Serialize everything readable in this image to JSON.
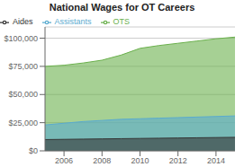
{
  "chart_data": {
    "type": "area",
    "title": "National Wages for OT Careers",
    "x": [
      2005,
      2006,
      2007,
      2008,
      2009,
      2010,
      2011,
      2012,
      2013,
      2014,
      2015
    ],
    "series": [
      {
        "name": "OTS",
        "color": "#6ab04c",
        "values": [
          75000,
          76000,
          78000,
          80500,
          85000,
          91000,
          93500,
          95500,
          97500,
          99500,
          101000
        ]
      },
      {
        "name": "Assistants",
        "color": "#5aabcf",
        "values": [
          23000,
          24500,
          26000,
          27000,
          28000,
          28500,
          29000,
          29500,
          30000,
          30500,
          31000
        ]
      },
      {
        "name": "Aides",
        "color": "#333333",
        "values": [
          10000,
          10200,
          10400,
          10600,
          10800,
          11000,
          11200,
          11400,
          11600,
          11800,
          12000
        ]
      }
    ],
    "xlim": [
      2005,
      2015
    ],
    "xticks": [
      2006,
      2008,
      2010,
      2012,
      2014
    ],
    "ylim": [
      0,
      110000
    ],
    "yticks": [
      {
        "value": 0,
        "label": "$0"
      },
      {
        "value": 25000,
        "label": "$25,000"
      },
      {
        "value": 50000,
        "label": "$50,000"
      },
      {
        "value": 75000,
        "label": "$75,000"
      },
      {
        "value": 100000,
        "label": "$100,000"
      }
    ],
    "grid": true,
    "legend": "upper left",
    "stacked": false
  }
}
